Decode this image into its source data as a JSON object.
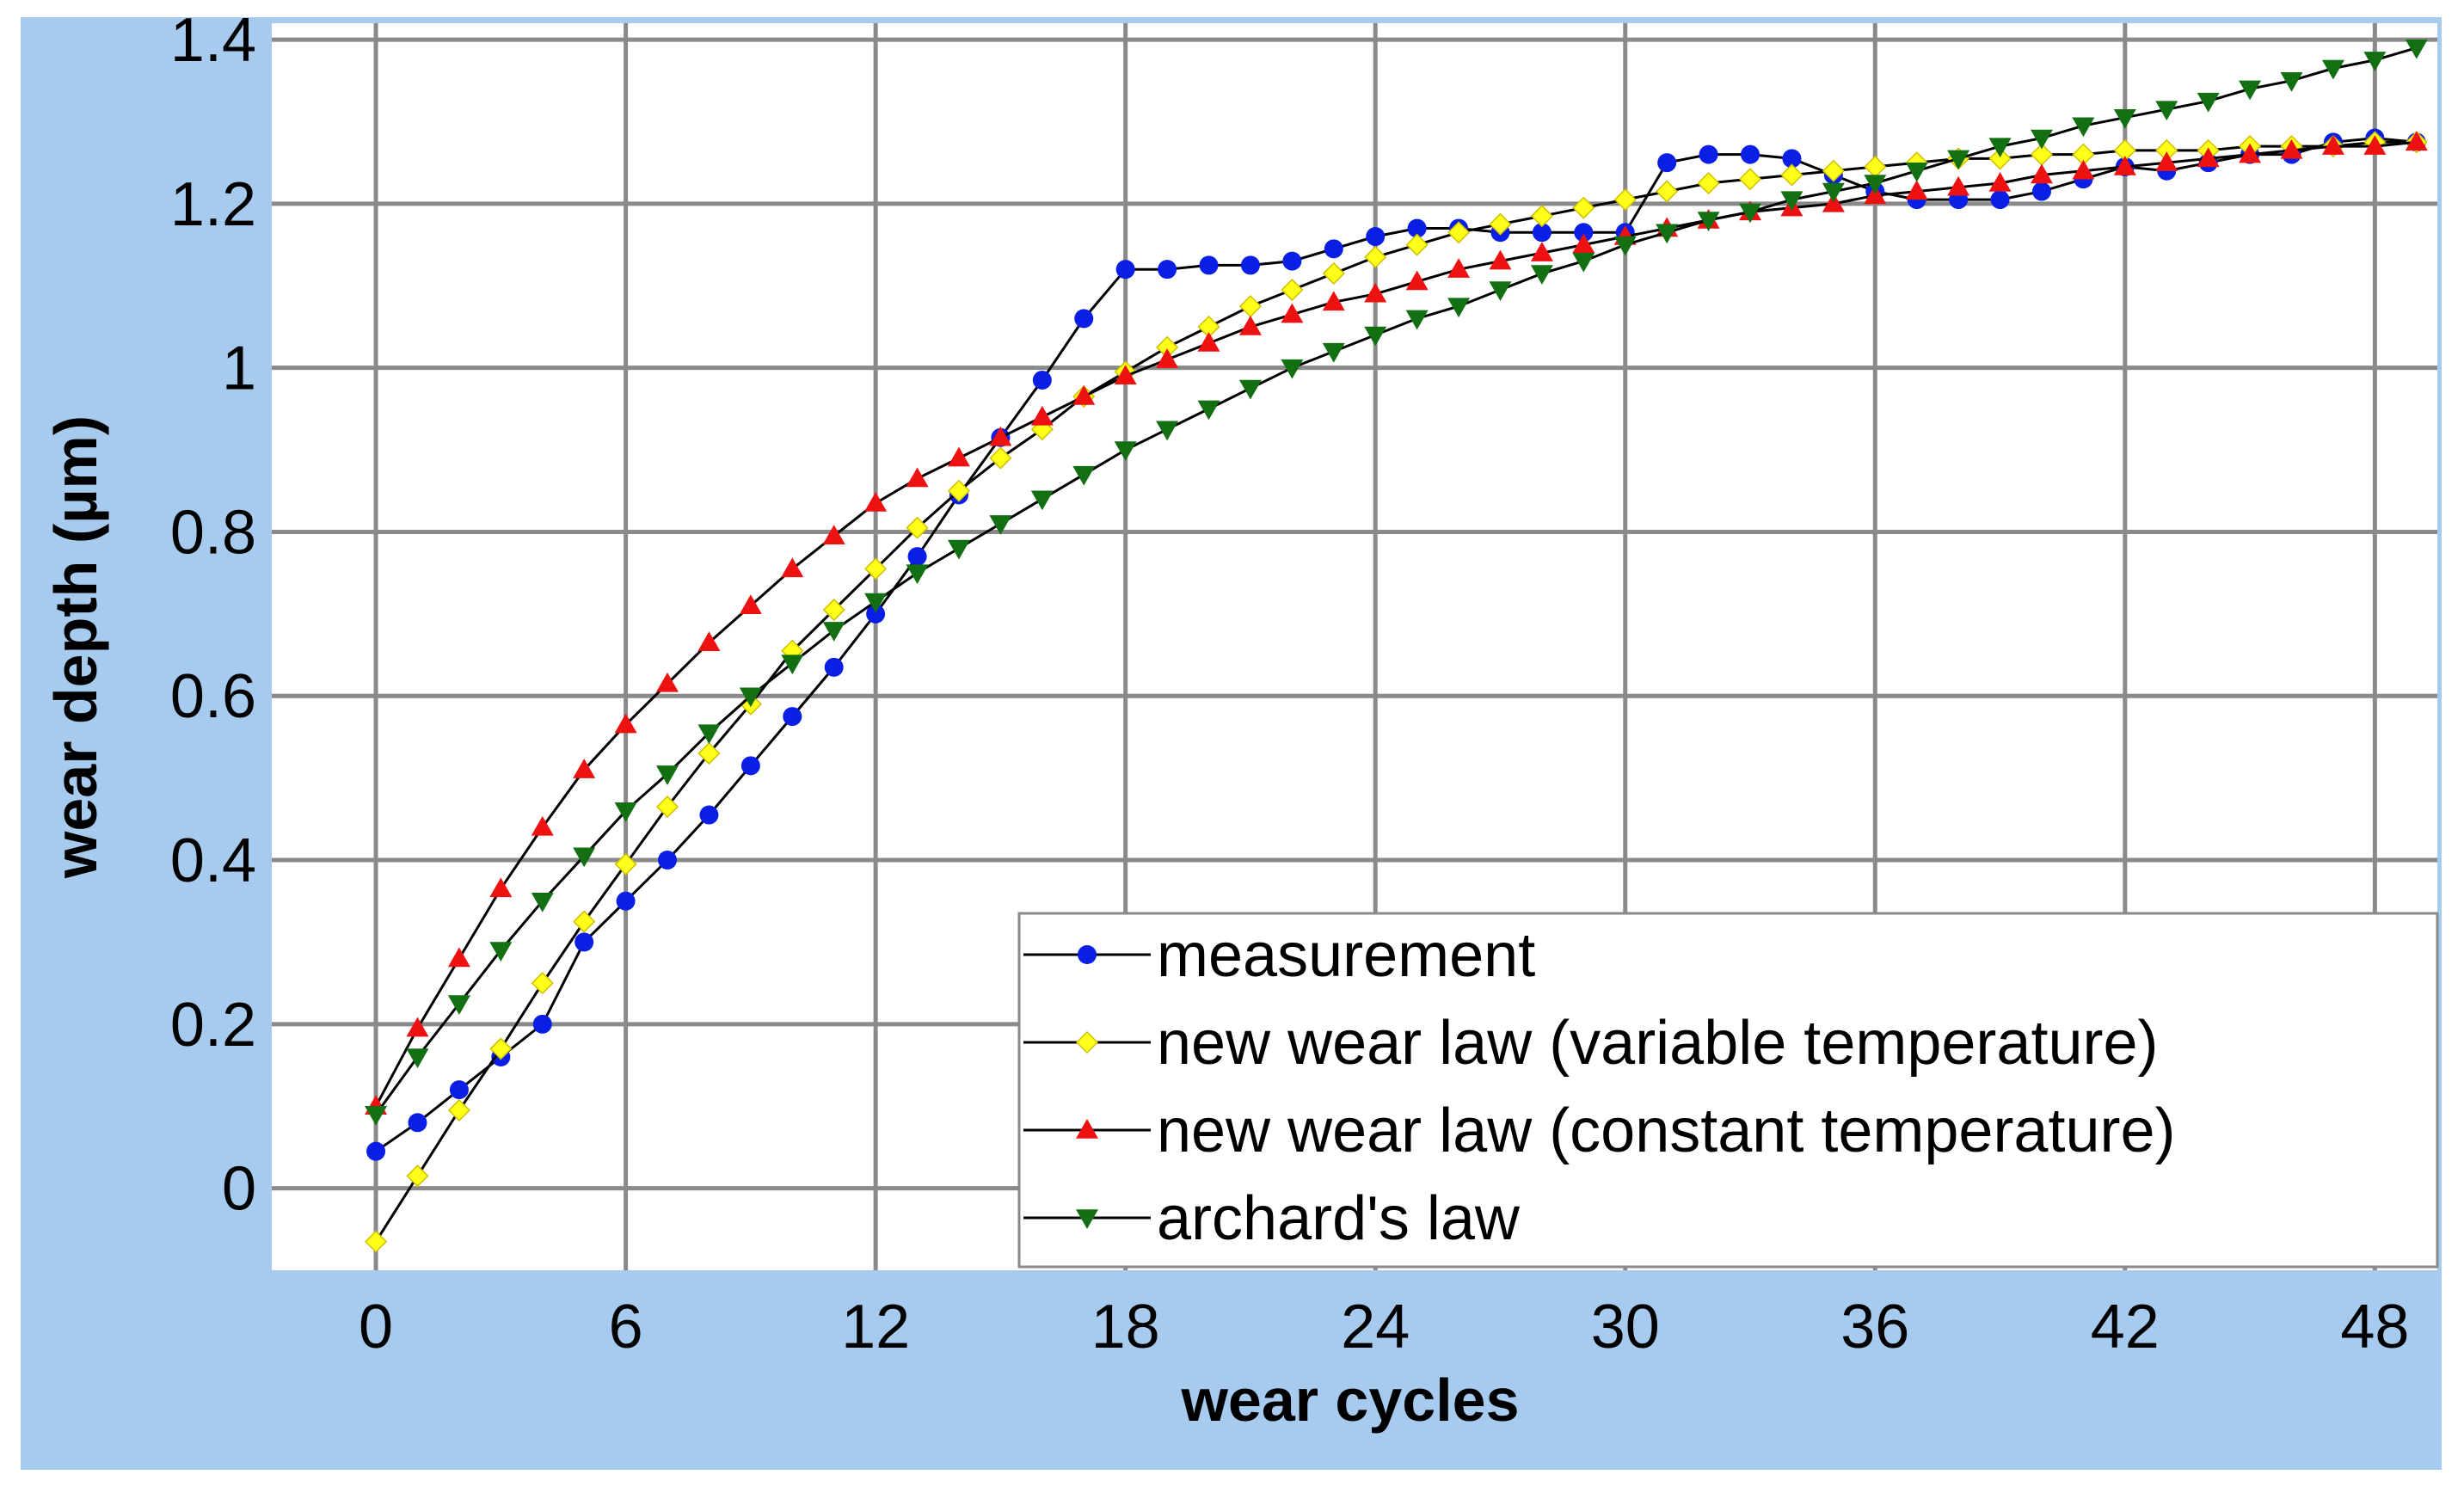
{
  "colors": {
    "frame_background": "#a7cbee",
    "plot_background": "#ffffff",
    "grid": "#8a8a8a",
    "line": "#000000"
  },
  "chart_data": {
    "type": "line",
    "xlabel": "wear cycles",
    "ylabel": "wear depth (µm)",
    "xlim": [
      -2.5,
      49.5
    ],
    "ylim": [
      -0.1,
      1.42
    ],
    "grid": true,
    "legend_position": "bottom-right",
    "x_ticks": [
      0,
      6,
      12,
      18,
      24,
      30,
      36,
      42,
      48
    ],
    "x_tick_labels": [
      "0",
      "6",
      "12",
      "18",
      "24",
      "30",
      "36",
      "42",
      "48"
    ],
    "y_ticks": [
      0,
      0.2,
      0.4,
      0.6,
      0.8,
      1.0,
      1.2,
      1.4
    ],
    "y_tick_labels": [
      "0",
      "0.2",
      "0.4",
      "0.6",
      "0.8",
      "1",
      "1.2",
      "1.4"
    ],
    "x": [
      0,
      1,
      2,
      3,
      4,
      5,
      6,
      7,
      8,
      9,
      10,
      11,
      12,
      13,
      14,
      15,
      16,
      17,
      18,
      19,
      20,
      21,
      22,
      23,
      24,
      25,
      26,
      27,
      28,
      29,
      30,
      31,
      32,
      33,
      34,
      35,
      36,
      37,
      38,
      39,
      40,
      41,
      42,
      43,
      44,
      45,
      46,
      47,
      48,
      49
    ],
    "series": [
      {
        "name": "measurement",
        "marker": "circle",
        "color": "#0a1fe6",
        "values": [
          0.045,
          0.08,
          0.12,
          0.16,
          0.2,
          0.3,
          0.35,
          0.4,
          0.455,
          0.515,
          0.575,
          0.635,
          0.7,
          0.77,
          0.845,
          0.915,
          0.985,
          1.06,
          1.12,
          1.12,
          1.125,
          1.125,
          1.13,
          1.145,
          1.16,
          1.17,
          1.17,
          1.165,
          1.165,
          1.165,
          1.165,
          1.25,
          1.26,
          1.26,
          1.255,
          1.235,
          1.215,
          1.205,
          1.205,
          1.205,
          1.215,
          1.23,
          1.245,
          1.24,
          1.25,
          1.26,
          1.26,
          1.275,
          1.28,
          1.275
        ]
      },
      {
        "name": "new wear law (variable temperature)",
        "marker": "diamond",
        "color": "#ffff1a",
        "values": [
          -0.065,
          0.015,
          0.095,
          0.17,
          0.25,
          0.325,
          0.395,
          0.465,
          0.53,
          0.59,
          0.655,
          0.705,
          0.755,
          0.805,
          0.85,
          0.89,
          0.925,
          0.965,
          0.995,
          1.025,
          1.05,
          1.075,
          1.095,
          1.115,
          1.135,
          1.15,
          1.165,
          1.175,
          1.185,
          1.195,
          1.205,
          1.215,
          1.225,
          1.23,
          1.235,
          1.24,
          1.245,
          1.25,
          1.255,
          1.255,
          1.26,
          1.26,
          1.265,
          1.265,
          1.265,
          1.27,
          1.27,
          1.27,
          1.275,
          1.275
        ]
      },
      {
        "name": "new wear law (constant temperature)",
        "marker": "triangle-up",
        "color": "#ee1111",
        "values": [
          0.1,
          0.195,
          0.28,
          0.365,
          0.44,
          0.51,
          0.565,
          0.615,
          0.665,
          0.71,
          0.755,
          0.795,
          0.835,
          0.865,
          0.89,
          0.915,
          0.94,
          0.965,
          0.99,
          1.01,
          1.03,
          1.05,
          1.065,
          1.08,
          1.09,
          1.105,
          1.12,
          1.13,
          1.14,
          1.15,
          1.16,
          1.17,
          1.18,
          1.19,
          1.195,
          1.2,
          1.21,
          1.215,
          1.22,
          1.225,
          1.235,
          1.24,
          1.245,
          1.25,
          1.255,
          1.26,
          1.265,
          1.27,
          1.27,
          1.275
        ]
      },
      {
        "name": "archard's law",
        "marker": "triangle-down",
        "color": "#127012",
        "values": [
          0.09,
          0.16,
          0.225,
          0.29,
          0.35,
          0.405,
          0.46,
          0.505,
          0.555,
          0.6,
          0.64,
          0.68,
          0.715,
          0.75,
          0.78,
          0.81,
          0.84,
          0.87,
          0.9,
          0.925,
          0.95,
          0.975,
          1.0,
          1.02,
          1.04,
          1.06,
          1.075,
          1.095,
          1.115,
          1.13,
          1.15,
          1.165,
          1.18,
          1.19,
          1.205,
          1.215,
          1.225,
          1.24,
          1.255,
          1.27,
          1.28,
          1.295,
          1.305,
          1.315,
          1.325,
          1.34,
          1.35,
          1.365,
          1.375,
          1.39
        ]
      }
    ]
  }
}
